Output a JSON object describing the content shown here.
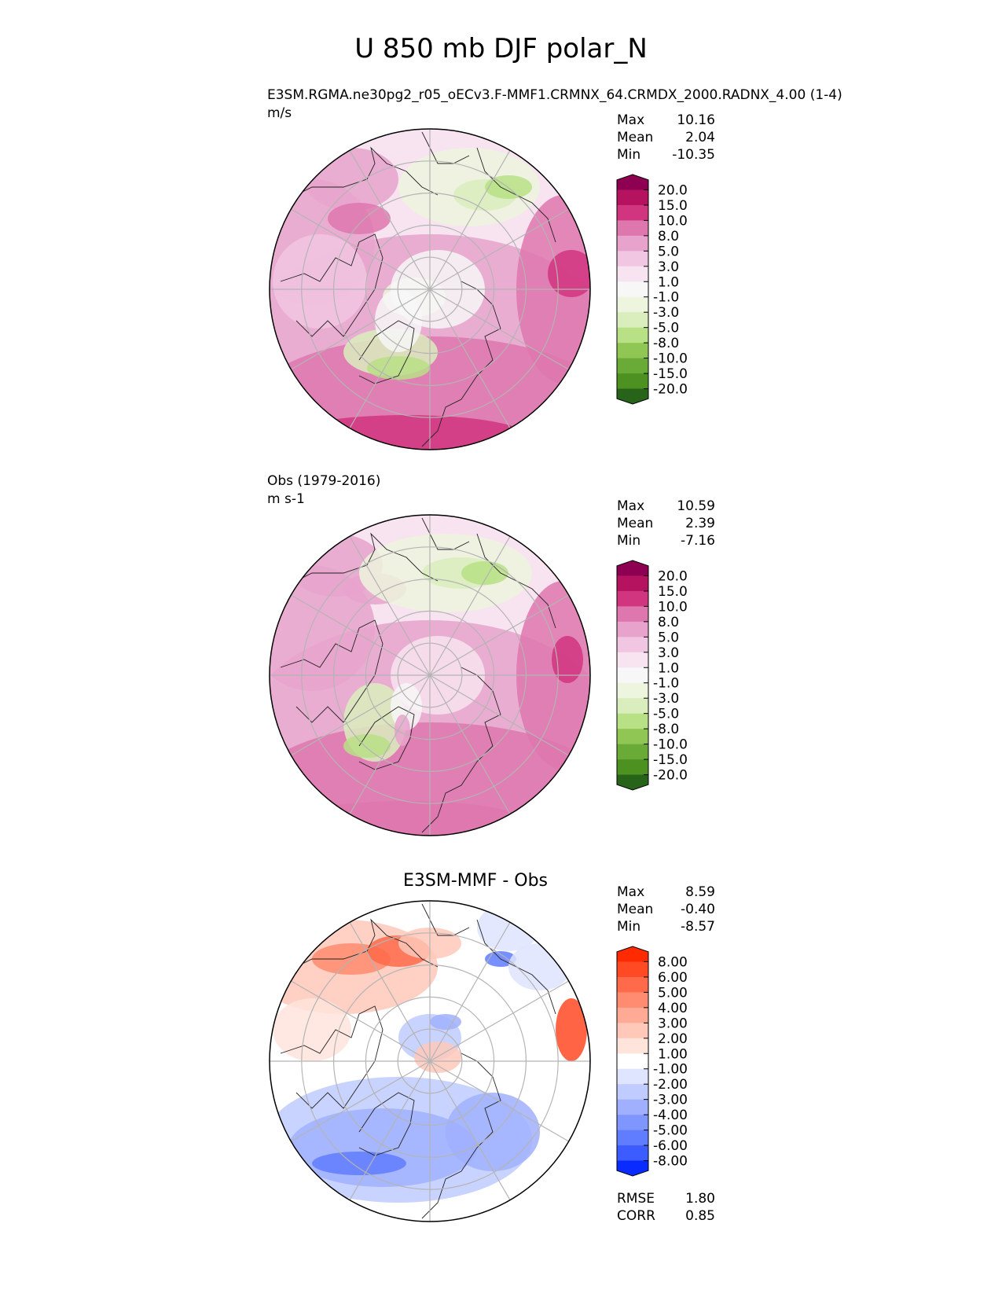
{
  "figure_title": "U 850 mb DJF polar_N",
  "panels": [
    {
      "subtitle": "E3SM.RGMA.ne30pg2_r05_oECv3.F-MMF1.CRMNX_64.CRMDX_2000.RADNX_4.00 (1-4)",
      "units": "m/s",
      "stats": [
        {
          "label": "Max",
          "value": "10.16"
        },
        {
          "label": "Mean",
          "value": "2.04"
        },
        {
          "label": "Min",
          "value": "-10.35"
        }
      ]
    },
    {
      "subtitle": "Obs (1979-2016)",
      "units": "m s-1",
      "stats": [
        {
          "label": "Max",
          "value": "10.59"
        },
        {
          "label": "Mean",
          "value": "2.39"
        },
        {
          "label": "Min",
          "value": "-7.16"
        }
      ]
    },
    {
      "title": "E3SM-MMF - Obs",
      "stats": [
        {
          "label": "Max",
          "value": "8.59"
        },
        {
          "label": "Mean",
          "value": "-0.40"
        },
        {
          "label": "Min",
          "value": "-8.57"
        }
      ],
      "metrics": [
        {
          "label": "RMSE",
          "value": "1.80"
        },
        {
          "label": "CORR",
          "value": "0.85"
        }
      ]
    }
  ],
  "chart_data": [
    {
      "type": "heatmap",
      "projection": "north polar stereographic",
      "title": "E3SM.RGMA.ne30pg2_r05_oECv3.F-MMF1.CRMNX_64.CRMDX_2000.RADNX_4.00 (1-4)",
      "units": "m/s",
      "colorbar_levels": [
        "20.0",
        "15.0",
        "10.0",
        "8.0",
        "5.0",
        "3.0",
        "1.0",
        "-1.0",
        "-3.0",
        "-5.0",
        "-8.0",
        "-10.0",
        "-15.0",
        "-20.0"
      ],
      "colorbar_colors": [
        "#8e0152",
        "#b5135f",
        "#d1357f",
        "#de77ae",
        "#e8a3cc",
        "#f1c6e2",
        "#f8e3f0",
        "#f7f7f7",
        "#edf5de",
        "#d9edbd",
        "#b8e186",
        "#90c754",
        "#6aab38",
        "#4d9221",
        "#276419"
      ],
      "max": 10.16,
      "mean": 2.04,
      "min": -10.35
    },
    {
      "type": "heatmap",
      "projection": "north polar stereographic",
      "title": "Obs (1979-2016)",
      "units": "m s-1",
      "colorbar_levels": [
        "20.0",
        "15.0",
        "10.0",
        "8.0",
        "5.0",
        "3.0",
        "1.0",
        "-1.0",
        "-3.0",
        "-5.0",
        "-8.0",
        "-10.0",
        "-15.0",
        "-20.0"
      ],
      "colorbar_colors": [
        "#8e0152",
        "#b5135f",
        "#d1357f",
        "#de77ae",
        "#e8a3cc",
        "#f1c6e2",
        "#f8e3f0",
        "#f7f7f7",
        "#edf5de",
        "#d9edbd",
        "#b8e186",
        "#90c754",
        "#6aab38",
        "#4d9221",
        "#276419"
      ],
      "max": 10.59,
      "mean": 2.39,
      "min": -7.16
    },
    {
      "type": "heatmap",
      "projection": "north polar stereographic",
      "title": "E3SM-MMF - Obs",
      "colorbar_levels": [
        "8.00",
        "6.00",
        "5.00",
        "4.00",
        "3.00",
        "2.00",
        "1.00",
        "-1.00",
        "-2.00",
        "-3.00",
        "-4.00",
        "-5.00",
        "-6.00",
        "-8.00"
      ],
      "colorbar_colors": [
        "#ff2a00",
        "#ff4a24",
        "#ff6a4a",
        "#ff8c70",
        "#ffaa94",
        "#ffc8b8",
        "#ffe4dc",
        "#ffffff",
        "#dfe4ff",
        "#c0cbff",
        "#a0b0ff",
        "#8096ff",
        "#607cff",
        "#3c5cff",
        "#0a2bff"
      ],
      "max": 8.59,
      "mean": -0.4,
      "min": -8.57,
      "rmse": 1.8,
      "corr": 0.85
    }
  ]
}
